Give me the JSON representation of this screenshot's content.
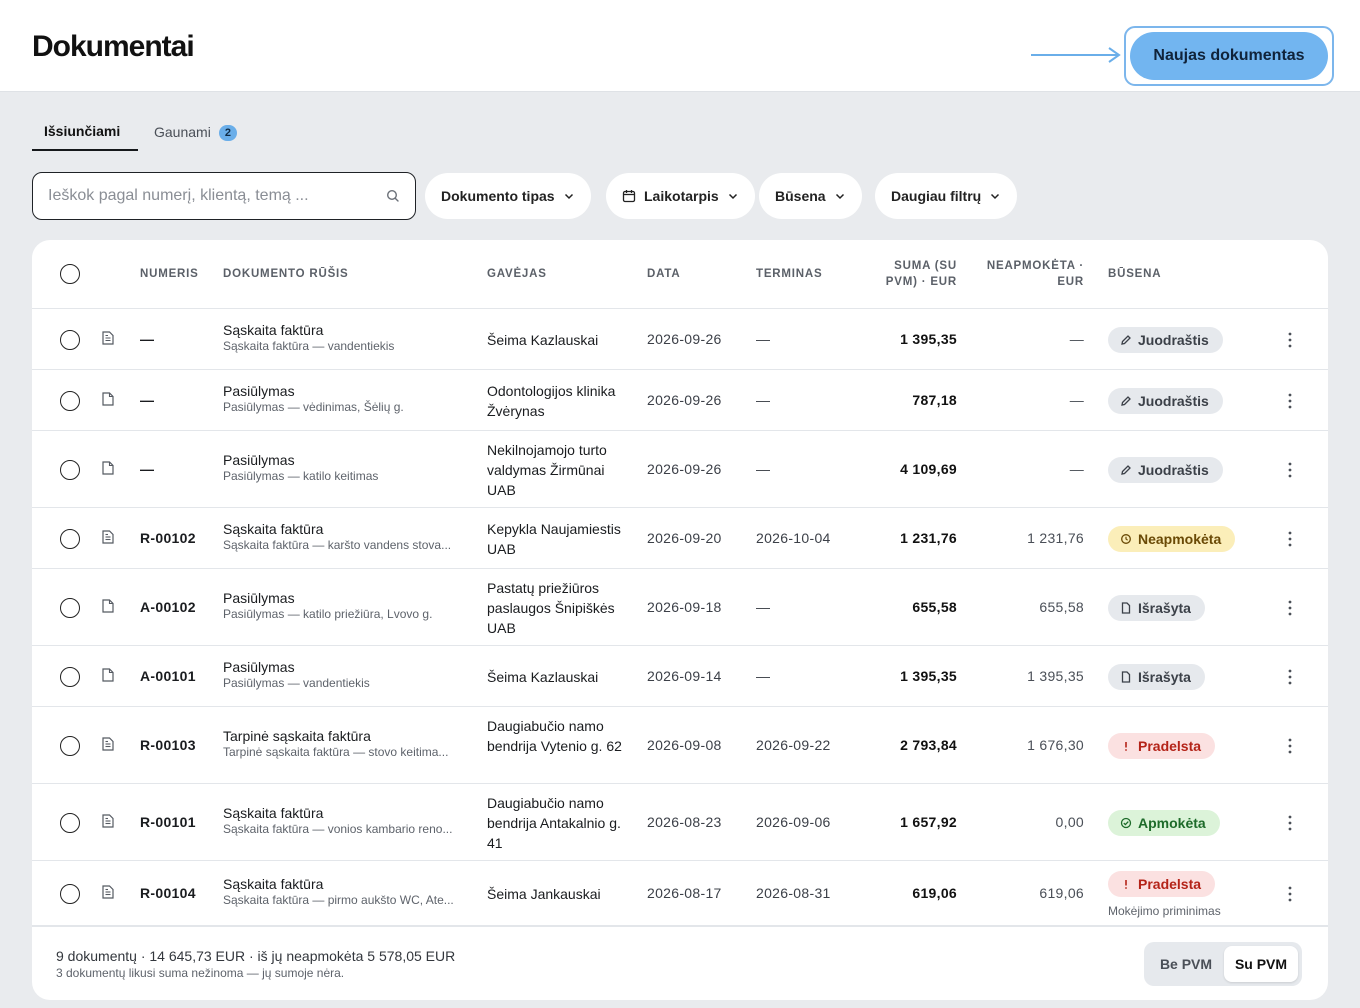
{
  "header": {
    "title": "Dokumentai",
    "new_button": "Naujas dokumentas"
  },
  "tabs": [
    {
      "label": "Išsiunčiami"
    },
    {
      "label": "Gaunami",
      "badge": "2"
    }
  ],
  "search": {
    "placeholder": "Ieškok pagal numerį, klientą, temą ..."
  },
  "filters": {
    "doc_type": "Dokumento tipas",
    "period": "Laikotarpis",
    "status": "Būsena",
    "more": "Daugiau filtrų"
  },
  "columns": {
    "number": "NUMERIS",
    "doc_type": "DOKUMENTO RŪŠIS",
    "recipient": "GAVĖJAS",
    "date": "DATA",
    "due": "TERMINAS",
    "sum_l1": "SUMA (SU",
    "sum_l2": "PVM) · EUR",
    "unpaid_l1": "NEAPMOKĖTA ·",
    "unpaid_l2": "EUR",
    "status": "BŪSENA"
  },
  "rows": [
    {
      "number": "—",
      "type": "Sąskaita faktūra",
      "subtitle": "Sąskaita faktūra — vandentiekis",
      "recipient": "Šeima Kazlauskai",
      "date": "2026-09-26",
      "due": "—",
      "sum": "1 395,35",
      "unpaid": "—",
      "status": "Juodraštis"
    },
    {
      "number": "—",
      "type": "Pasiūlymas",
      "subtitle": "Pasiūlymas — vėdinimas, Šėlių g.",
      "recipient": "Odontologijos klinika Žvėrynas",
      "date": "2026-09-26",
      "due": "—",
      "sum": "787,18",
      "unpaid": "—",
      "status": "Juodraštis"
    },
    {
      "number": "—",
      "type": "Pasiūlymas",
      "subtitle": "Pasiūlymas — katilo keitimas",
      "recipient": "Nekilnojamojo turto valdymas Žirmūnai UAB",
      "date": "2026-09-26",
      "due": "—",
      "sum": "4 109,69",
      "unpaid": "—",
      "status": "Juodraštis"
    },
    {
      "number": "R-00102",
      "type": "Sąskaita faktūra",
      "subtitle": "Sąskaita faktūra — karšto vandens stova...",
      "recipient": "Kepykla Naujamiestis UAB",
      "date": "2026-09-20",
      "due": "2026-10-04",
      "sum": "1 231,76",
      "unpaid": "1 231,76",
      "status": "Neapmokėta"
    },
    {
      "number": "A-00102",
      "type": "Pasiūlymas",
      "subtitle": "Pasiūlymas — katilo priežiūra, Lvovo g.",
      "recipient": "Pastatų priežiūros paslaugos Šnipiškės UAB",
      "date": "2026-09-18",
      "due": "—",
      "sum": "655,58",
      "unpaid": "655,58",
      "status": "Išrašyta"
    },
    {
      "number": "A-00101",
      "type": "Pasiūlymas",
      "subtitle": "Pasiūlymas — vandentiekis",
      "recipient": "Šeima Kazlauskai",
      "date": "2026-09-14",
      "due": "—",
      "sum": "1 395,35",
      "unpaid": "1 395,35",
      "status": "Išrašyta"
    },
    {
      "number": "R-00103",
      "type": "Tarpinė sąskaita faktūra",
      "subtitle": "Tarpinė sąskaita faktūra — stovo keitima...",
      "recipient": "Daugiabučio namo bendrija Vytenio g. 62",
      "date": "2026-09-08",
      "due": "2026-09-22",
      "sum": "2 793,84",
      "unpaid": "1 676,30",
      "status": "Pradelsta"
    },
    {
      "number": "R-00101",
      "type": "Sąskaita faktūra",
      "subtitle": "Sąskaita faktūra — vonios kambario reno...",
      "recipient": "Daugiabučio namo bendrija Antakalnio g. 41",
      "date": "2026-08-23",
      "due": "2026-09-06",
      "sum": "1 657,92",
      "unpaid": "0,00",
      "status": "Apmokėta"
    },
    {
      "number": "R-00104",
      "type": "Sąskaita faktūra",
      "subtitle": "Sąskaita faktūra — pirmo aukšto WC, Ate...",
      "recipient": "Šeima Jankauskai",
      "date": "2026-08-17",
      "due": "2026-08-31",
      "sum": "619,06",
      "unpaid": "619,06",
      "status": "Pradelsta",
      "note": "Mokėjimo priminimas"
    }
  ],
  "footer": {
    "summary": "9 dokumentų · 14 645,73 EUR · iš jų neapmokėta 5 578,05 EUR",
    "note": "3 dokumentų likusi suma nežinoma — jų sumoje nėra.",
    "vat_off": "Be PVM",
    "vat_on": "Su PVM"
  },
  "colors": {
    "accent": "#72b5f0",
    "draft": "#e6e9ed",
    "unpaid": "#fbeeb9",
    "overdue": "#fbe1e1",
    "paid": "#dcf3d9"
  }
}
